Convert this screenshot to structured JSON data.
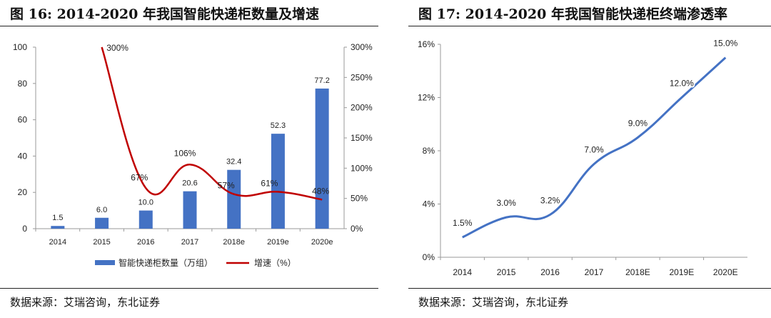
{
  "figures": [
    {
      "title": "图 16: 2014-2020 年我国智能快递柜数量及增速",
      "source": "数据来源：艾瑞咨询，东北证券"
    },
    {
      "title": "图 17: 2014-2020 年我国智能快递柜终端渗透率",
      "source": "数据来源：艾瑞咨询，东北证券"
    }
  ],
  "chart_data": [
    {
      "type": "bar",
      "title": "2014-2020 年我国智能快递柜数量及增速",
      "categories": [
        "2014",
        "2015",
        "2016",
        "2017",
        "2018e",
        "2019e",
        "2020e"
      ],
      "series": [
        {
          "name": "智能快递柜数量（万组）",
          "type": "bar",
          "axis": "left",
          "values": [
            1.5,
            6.0,
            10.0,
            20.6,
            32.4,
            52.3,
            77.2
          ],
          "labels": [
            "1.5",
            "6.0",
            "10.0",
            "20.6",
            "32.4",
            "52.3",
            "77.2"
          ],
          "color": "#4472c4"
        },
        {
          "name": "增速（%）",
          "type": "line",
          "axis": "right",
          "values": [
            null,
            300,
            67,
            106,
            57,
            61,
            48
          ],
          "labels": [
            "",
            "300%",
            "67%",
            "106%",
            "57%",
            "61%",
            "48%"
          ],
          "color": "#c00000"
        }
      ],
      "y_left": {
        "ylim": [
          0,
          100
        ],
        "ticks": [
          0,
          20,
          40,
          60,
          80,
          100
        ],
        "tick_labels": [
          "0",
          "20",
          "40",
          "60",
          "80",
          "100"
        ]
      },
      "y_right": {
        "ylim": [
          0,
          300
        ],
        "ticks": [
          0,
          50,
          100,
          150,
          200,
          250,
          300
        ],
        "tick_labels": [
          "0%",
          "50%",
          "100%",
          "150%",
          "200%",
          "250%",
          "300%"
        ]
      },
      "legend": {
        "position": "bottom",
        "labels": [
          "智能快递柜数量（万组）",
          "增速（%）"
        ]
      },
      "grid": false
    },
    {
      "type": "line",
      "title": "2014-2020 年我国智能快递柜终端渗透率",
      "categories": [
        "2014",
        "2015",
        "2016",
        "2017",
        "2018E",
        "2019E",
        "2020E"
      ],
      "series": [
        {
          "name": "渗透率",
          "values": [
            1.5,
            3.0,
            3.2,
            7.0,
            9.0,
            12.0,
            15.0
          ],
          "labels": [
            "1.5%",
            "3.0%",
            "3.2%",
            "7.0%",
            "9.0%",
            "12.0%",
            "15.0%"
          ],
          "color": "#4472c4"
        }
      ],
      "ylim": [
        0,
        16
      ],
      "ticks": [
        0,
        4,
        8,
        12,
        16
      ],
      "tick_labels": [
        "0%",
        "4%",
        "8%",
        "12%",
        "16%"
      ],
      "grid": false
    }
  ]
}
